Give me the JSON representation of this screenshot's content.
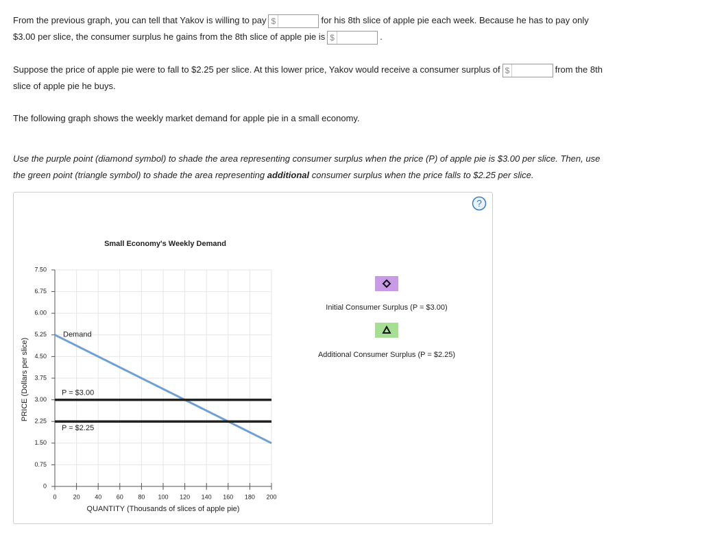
{
  "question": {
    "paragraphs": [
      {
        "top": 30,
        "lines": [
          [
            {
              "text": "From the previous graph, you can tell that Yakov is willing to pay"
            },
            {
              "blank": "$"
            },
            {
              "text": "for his 8th slice of apple pie each week. Because he has to pay only"
            }
          ],
          [
            {
              "text": "$3.00 per slice, the consumer surplus he gains from the 8th slice of apple pie is"
            },
            {
              "blank": "$"
            },
            {
              "text": "."
            }
          ]
        ]
      },
      {
        "lines": [
          [
            {
              "text": "Suppose the price of apple pie were to fall to $2.25 per slice. At this lower price, Yakov would receive a consumer surplus of"
            },
            {
              "blank": "$"
            },
            {
              "text": "from the 8th"
            }
          ],
          [
            {
              "text": "slice of apple pie he buys."
            }
          ]
        ]
      },
      {
        "lines": [
          [
            {
              "text": "The following graph shows the weekly market demand for apple pie in a small economy."
            }
          ]
        ]
      },
      {
        "italic": true,
        "lines": [
          [
            {
              "text": "Use the purple point (diamond symbol) to shade the area representing consumer surplus when the price (P) of apple pie is $3.00 per slice. Then, use"
            }
          ],
          [
            {
              "text": "the green point (triangle symbol) to shade the area representing "
            },
            {
              "bold": "additional"
            },
            {
              "text": " consumer surplus when the price falls to $2.25 per slice."
            }
          ]
        ]
      }
    ]
  },
  "chart_data": {
    "type": "line",
    "title": "Small Economy's Weekly Demand",
    "xlabel": "QUANTITY (Thousands of slices of apple pie)",
    "ylabel": "PRICE (Dollars per slice)",
    "xlim": [
      0,
      200
    ],
    "ylim": [
      0,
      7.5
    ],
    "grid": true,
    "xticks": [
      0,
      20,
      40,
      60,
      80,
      100,
      120,
      140,
      160,
      180,
      200
    ],
    "yticks": [
      0,
      {
        "value": 0.75,
        "label": "0.75"
      },
      {
        "value": 1.5,
        "label": "1.50"
      },
      {
        "value": 2.25,
        "label": "2.25"
      },
      {
        "value": 3,
        "label": "3.00"
      },
      {
        "value": 3.75,
        "label": "3.75"
      },
      {
        "value": 4.5,
        "label": "4.50"
      },
      {
        "value": 5.25,
        "label": "5.25"
      },
      {
        "value": 6,
        "label": "6.00"
      },
      {
        "value": 6.75,
        "label": "6.75"
      },
      {
        "value": 7.5,
        "label": "7.50"
      }
    ],
    "series": [
      {
        "name": "Demand",
        "color": "#6f9fd4",
        "x": [
          0,
          200
        ],
        "values": [
          5.25,
          1.5
        ],
        "label_position": "right"
      },
      {
        "name": "P = $3.00",
        "color": "#222222",
        "x": [
          0,
          200
        ],
        "values": [
          3,
          3
        ],
        "label_position": "above"
      },
      {
        "name": "P = $2.25",
        "color": "#222222",
        "x": [
          0,
          200
        ],
        "values": [
          2.25,
          2.25
        ],
        "label_position": "below"
      }
    ]
  },
  "tools": [
    {
      "label": "Initial Consumer Surplus (P = $3.00)",
      "color": "#c99ae6",
      "symbol": "diamond"
    },
    {
      "label": "Additional Consumer Surplus (P = $2.25)",
      "color": "#a6df94",
      "symbol": "triangle"
    }
  ],
  "help": "?"
}
